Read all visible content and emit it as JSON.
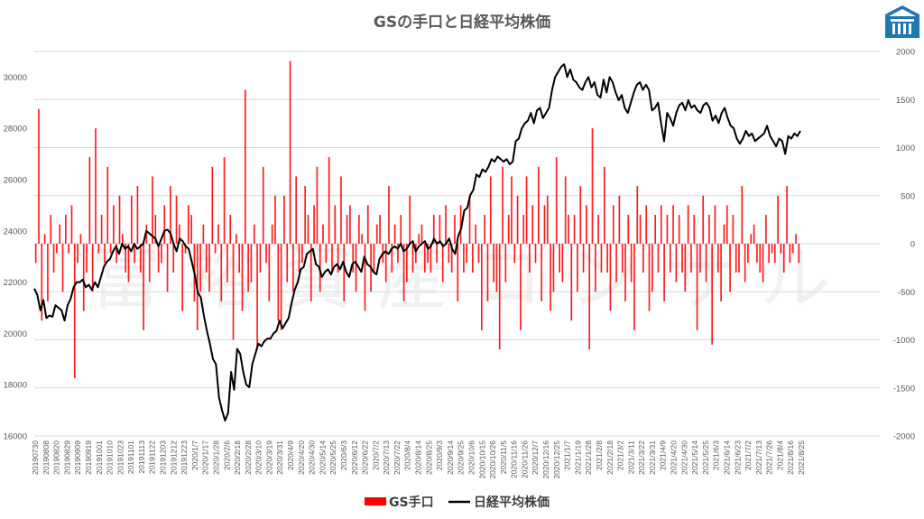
{
  "chart_data": {
    "type": "bar+line",
    "title": "GSの手口と日経平均株価",
    "watermark": "富裕資産コンサル",
    "legend_position": "bottom",
    "grid": true,
    "colors": {
      "bars": "#ff0000",
      "line": "#000000",
      "grid": "#d9d9d9",
      "text": "#595959",
      "logo": "#1f77b4"
    },
    "left_axis": {
      "ylim": [
        16000,
        31000
      ],
      "ticks": [
        16000,
        18000,
        20000,
        22000,
        24000,
        26000,
        28000,
        30000
      ],
      "tick_labels": [
        "16000",
        "18000",
        "20000",
        "22000",
        "24000",
        "26000",
        "28000",
        "30000"
      ]
    },
    "right_axis": {
      "ylim": [
        -2000,
        2000
      ],
      "ticks": [
        -2000,
        -1500,
        -1000,
        -500,
        0,
        500,
        1000,
        1500,
        2000
      ],
      "tick_labels": [
        "-2000",
        "-1500",
        "-1000",
        "-500",
        "0",
        "500",
        "1000",
        "1500",
        "2000"
      ]
    },
    "x_tick_labels": [
      "20190730",
      "20190808",
      "20190820",
      "20190829",
      "20190909",
      "20190919",
      "20191001",
      "20191010",
      "20191023",
      "20191101",
      "20191113",
      "20191122",
      "20191203",
      "20191212",
      "20191223",
      "2020/1/7",
      "2020/1/17",
      "2020/1/28",
      "2020/2/6",
      "2020/2/18",
      "2020/2/28",
      "2020/3/10",
      "2020/3/19",
      "2020/3/31",
      "2020/4/9",
      "2020/4/20",
      "2020/4/30",
      "2020/5/14",
      "2020/5/25",
      "2020/6/3",
      "2020/6/12",
      "2020/6/22",
      "2020/7/2",
      "2020/7/13",
      "2020/7/22",
      "2020/8/4",
      "2020/8/14",
      "2020/8/25",
      "2020/9/3",
      "2020/9/14",
      "2020/9/25",
      "2020/10/6",
      "2020/10/15",
      "2020/10/26",
      "2020/11/5",
      "2020/11/16",
      "2020/11/26",
      "2020/12/7",
      "2020/12/16",
      "2020/12/25",
      "2021/1/7",
      "2021/1/19",
      "2021/1/28",
      "2021/2/8",
      "2021/2/18",
      "2021/3/2",
      "2021/3/11",
      "2021/3/22",
      "2021/3/31",
      "2021/4/9",
      "2021/4/20",
      "2021/4/30",
      "2021/5/14",
      "2021/5/25",
      "2021/6/3",
      "2021/6/14",
      "2021/6/23",
      "2021/7/2",
      "2021/7/13",
      "2021/7/26",
      "2021/8/4",
      "2021/8/16",
      "2021/8/25"
    ],
    "series": [
      {
        "name": "GS手口",
        "type": "bar",
        "axis": "right",
        "values": [
          -200,
          1400,
          -800,
          100,
          -600,
          300,
          -300,
          -100,
          200,
          -500,
          300,
          -100,
          400,
          -1400,
          -200,
          100,
          -700,
          -300,
          900,
          -500,
          1200,
          -100,
          300,
          -200,
          800,
          -100,
          400,
          -200,
          500,
          100,
          -300,
          -400,
          500,
          -200,
          600,
          -300,
          -900,
          200,
          -400,
          700,
          300,
          -300,
          -200,
          400,
          -500,
          600,
          -300,
          500,
          200,
          -700,
          -100,
          400,
          300,
          -600,
          -900,
          -500,
          200,
          -300,
          -500,
          800,
          -100,
          200,
          -600,
          900,
          -400,
          300,
          -1000,
          100,
          -300,
          -700,
          1600,
          -500,
          -400,
          200,
          -1100,
          -300,
          800,
          -200,
          -600,
          200,
          500,
          -800,
          -900,
          500,
          -400,
          1900,
          -500,
          700,
          -300,
          -200,
          600,
          300,
          -600,
          400,
          800,
          -500,
          200,
          -200,
          900,
          -300,
          400,
          -300,
          700,
          -600,
          300,
          400,
          -300,
          -500,
          300,
          100,
          -700,
          400,
          -500,
          -300,
          200,
          300,
          -200,
          -400,
          600,
          -300,
          200,
          -200,
          300,
          -600,
          -400,
          500,
          -300,
          -200,
          100,
          200,
          -300,
          -200,
          -300,
          300,
          -200,
          300,
          -400,
          400,
          -200,
          -300,
          300,
          -600,
          400,
          -300,
          -200,
          500,
          -300,
          200,
          -200,
          -900,
          300,
          -600,
          700,
          -400,
          -500,
          -1100,
          800,
          -400,
          300,
          700,
          -200,
          500,
          -900,
          300,
          700,
          -300,
          400,
          -200,
          800,
          -600,
          400,
          500,
          -700,
          -500,
          900,
          -300,
          -400,
          700,
          300,
          -800,
          300,
          -500,
          600,
          -300,
          400,
          -1100,
          1200,
          -500,
          300,
          -300,
          800,
          -300,
          -700,
          400,
          -400,
          500,
          -300,
          -600,
          300,
          -400,
          -900,
          600,
          300,
          -300,
          400,
          -700,
          -500,
          300,
          -300,
          400,
          -600,
          300,
          -300,
          400,
          -400,
          300,
          -300,
          -500,
          400,
          -300,
          300,
          -900,
          -300,
          500,
          -400,
          300,
          -1050,
          400,
          -300,
          -600,
          200,
          400,
          -500,
          300,
          -300,
          -300,
          600,
          -400,
          -200,
          100,
          200,
          -200,
          -300,
          -400,
          300,
          -200,
          -100,
          -200,
          500,
          -100,
          -300,
          600,
          -200,
          -100,
          100,
          -200
        ]
      },
      {
        "name": "日経平均株価",
        "type": "line",
        "axis": "left",
        "values": [
          21750,
          21500,
          20900,
          21300,
          20600,
          20700,
          20650,
          21100,
          21000,
          20900,
          20500,
          21100,
          21350,
          21800,
          22000,
          22000,
          22100,
          21800,
          21900,
          21700,
          22000,
          21800,
          22200,
          22600,
          22800,
          22900,
          23200,
          23400,
          23100,
          23500,
          23300,
          23400,
          23200,
          23500,
          23300,
          23400,
          23500,
          24000,
          23900,
          23800,
          23700,
          23400,
          23700,
          24000,
          24050,
          23900,
          23500,
          23200,
          23700,
          23600,
          23400,
          23300,
          22800,
          22300,
          21600,
          21400,
          20700,
          20100,
          19600,
          19000,
          18800,
          17500,
          17000,
          16600,
          16900,
          18500,
          17800,
          19400,
          19200,
          18500,
          18000,
          17900,
          18800,
          19200,
          19600,
          19500,
          19700,
          19800,
          19800,
          20000,
          20100,
          20500,
          20200,
          20400,
          20600,
          21200,
          21700,
          22000,
          22500,
          22600,
          23100,
          23200,
          23300,
          22700,
          22600,
          22200,
          22400,
          22500,
          22300,
          22600,
          22700,
          22500,
          22800,
          22400,
          22200,
          22700,
          22800,
          22600,
          22400,
          23000,
          22700,
          22600,
          22400,
          22300,
          22900,
          23100,
          23200,
          23100,
          23300,
          23400,
          23300,
          23500,
          23200,
          23300,
          23500,
          23600,
          23200,
          23400,
          23500,
          23600,
          23300,
          23400,
          23700,
          23500,
          23600,
          23400,
          23500,
          23700,
          23300,
          23100,
          23800,
          24100,
          24800,
          24900,
          25400,
          25600,
          26200,
          26100,
          26400,
          26300,
          26500,
          26800,
          26700,
          26900,
          26800,
          26700,
          26800,
          26600,
          26700,
          27500,
          27600,
          28000,
          28200,
          28300,
          28600,
          28200,
          28700,
          28800,
          28400,
          28600,
          28800,
          29500,
          30000,
          30200,
          30400,
          30500,
          30000,
          30300,
          29900,
          29800,
          29600,
          29500,
          29800,
          30000,
          29600,
          29800,
          29300,
          29200,
          29900,
          29400,
          30000,
          29800,
          29400,
          29100,
          29300,
          28800,
          28600,
          29000,
          29400,
          29700,
          29800,
          29500,
          29700,
          29500,
          28700,
          28800,
          29000,
          28200,
          27500,
          28600,
          28400,
          28100,
          28600,
          28900,
          29000,
          28700,
          29100,
          28800,
          28900,
          28700,
          28600,
          28900,
          29000,
          28800,
          28300,
          28500,
          28200,
          28600,
          28800,
          28400,
          28100,
          28000,
          27600,
          27400,
          27600,
          27900,
          27700,
          27800,
          27500,
          27600,
          27700,
          27800,
          28100,
          27700,
          27500,
          27300,
          27600,
          27500,
          27000,
          27700,
          27600,
          27800,
          27700,
          27900
        ]
      }
    ]
  }
}
